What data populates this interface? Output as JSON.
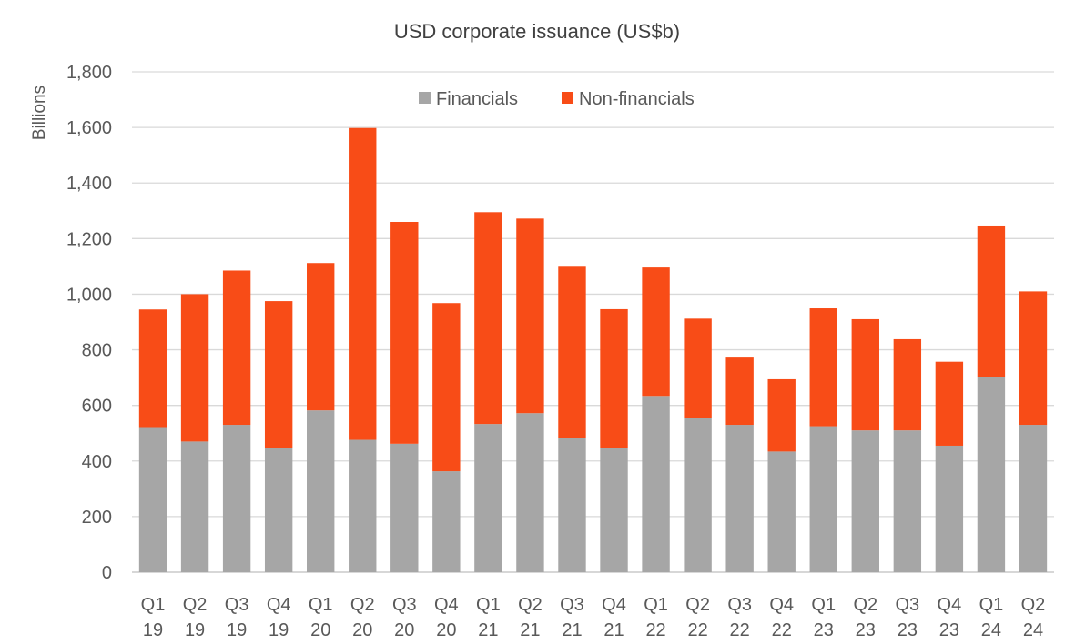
{
  "chart_data": {
    "type": "bar",
    "stacked": true,
    "title": "USD corporate issuance (US$b)",
    "ylabel": "Billions",
    "xlabel": "",
    "ylim": [
      0,
      1800
    ],
    "yticks": [
      0,
      200,
      400,
      600,
      800,
      1000,
      1200,
      1400,
      1600,
      1800
    ],
    "ytick_labels": [
      "0",
      "200",
      "400",
      "600",
      "800",
      "1,000",
      "1,200",
      "1,400",
      "1,600",
      "1,800"
    ],
    "grid": true,
    "legend_position": "top-center",
    "categories": [
      [
        "Q1",
        "19"
      ],
      [
        "Q2",
        "19"
      ],
      [
        "Q3",
        "19"
      ],
      [
        "Q4",
        "19"
      ],
      [
        "Q1",
        "20"
      ],
      [
        "Q2",
        "20"
      ],
      [
        "Q3",
        "20"
      ],
      [
        "Q4",
        "20"
      ],
      [
        "Q1",
        "21"
      ],
      [
        "Q2",
        "21"
      ],
      [
        "Q3",
        "21"
      ],
      [
        "Q4",
        "21"
      ],
      [
        "Q1",
        "22"
      ],
      [
        "Q2",
        "22"
      ],
      [
        "Q3",
        "22"
      ],
      [
        "Q4",
        "22"
      ],
      [
        "Q1",
        "23"
      ],
      [
        "Q2",
        "23"
      ],
      [
        "Q3",
        "23"
      ],
      [
        "Q4",
        "23"
      ],
      [
        "Q1",
        "24"
      ],
      [
        "Q2",
        "24"
      ]
    ],
    "series": [
      {
        "name": "Financials",
        "color": "#a6a6a6",
        "values": [
          522,
          470,
          530,
          448,
          582,
          476,
          462,
          363,
          533,
          572,
          484,
          446,
          634,
          556,
          530,
          434,
          525,
          510,
          510,
          455,
          702,
          530
        ]
      },
      {
        "name": "Non-financials",
        "color": "#f84c17",
        "values": [
          423,
          530,
          555,
          527,
          530,
          1122,
          798,
          605,
          762,
          700,
          618,
          500,
          462,
          356,
          242,
          260,
          424,
          400,
          328,
          302,
          545,
          480
        ]
      }
    ]
  }
}
